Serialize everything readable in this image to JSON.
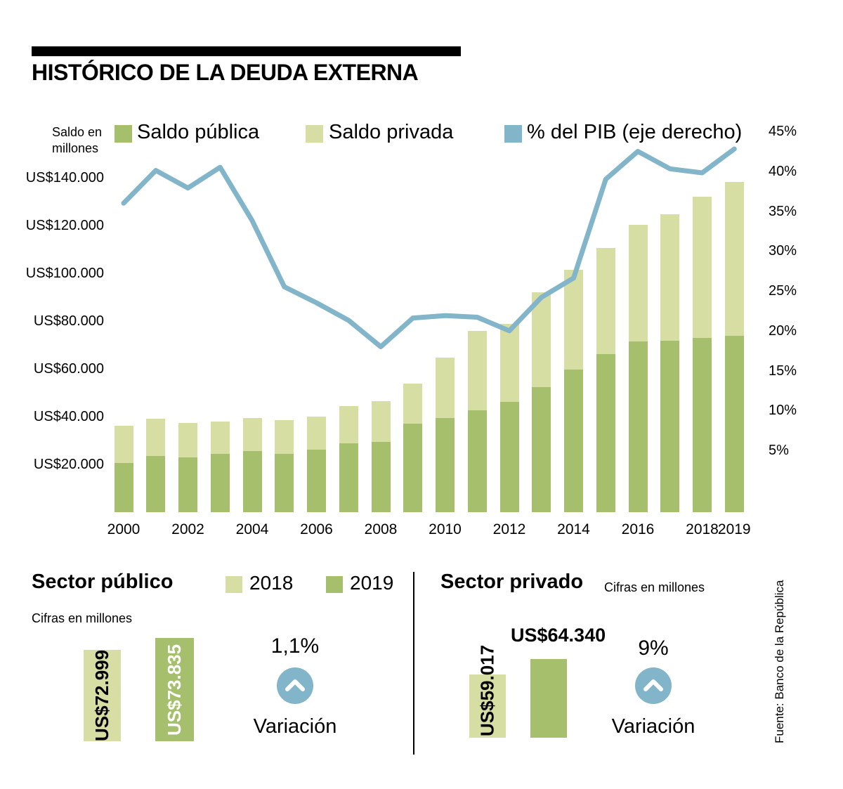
{
  "title": "HISTÓRICO DE LA DEUDA EXTERNA",
  "colors": {
    "publica": "#a5bf6c",
    "privada": "#d7dea4",
    "line": "#82b5c9"
  },
  "legend": {
    "axis_note": "Saldo en millones",
    "items": [
      {
        "label": "Saldo pública",
        "color": "#a5bf6c"
      },
      {
        "label": "Saldo privada",
        "color": "#d7dea4"
      },
      {
        "label": "% del PIB (eje derecho)",
        "color": "#82b5c9"
      }
    ]
  },
  "chart_data": {
    "type": "bar+line",
    "title": "HISTÓRICO DE LA DEUDA EXTERNA",
    "ylabel_left": "Saldo en millones",
    "ylabel_right": "% del PIB",
    "x": [
      2000,
      2001,
      2002,
      2003,
      2004,
      2005,
      2006,
      2007,
      2008,
      2009,
      2010,
      2011,
      2012,
      2013,
      2014,
      2015,
      2016,
      2017,
      2018,
      2019
    ],
    "series": [
      {
        "name": "Saldo pública",
        "type": "bar",
        "stack": true,
        "values": [
          20610,
          23468,
          22800,
          24525,
          25570,
          24300,
          26275,
          28819,
          29445,
          37129,
          39546,
          42769,
          46070,
          52207,
          59767,
          66194,
          71323,
          71867,
          72999,
          73835
        ]
      },
      {
        "name": "Saldo privada",
        "type": "bar",
        "stack": true,
        "values": [
          15520,
          15628,
          14540,
          13540,
          13927,
          14207,
          13828,
          15734,
          16924,
          16590,
          25177,
          33134,
          32714,
          39866,
          41637,
          44308,
          48830,
          52769,
          59017,
          64340
        ]
      },
      {
        "name": "% del PIB (eje derecho)",
        "type": "line",
        "axis": "right",
        "values": [
          36.0,
          40.1,
          37.9,
          40.5,
          33.8,
          25.5,
          23.5,
          21.3,
          18.0,
          21.6,
          21.9,
          21.7,
          20.0,
          24.2,
          26.6,
          39.0,
          42.5,
          40.3,
          39.8,
          42.8
        ]
      }
    ],
    "left_axis": {
      "tick_labels": [
        "US$140.000",
        "US$120.000",
        "US$100.000",
        "US$80.000",
        "US$60.000",
        "US$40.000",
        "US$20.000"
      ],
      "tick_values": [
        140000,
        120000,
        100000,
        80000,
        60000,
        40000,
        20000
      ],
      "range": [
        0,
        150000
      ]
    },
    "right_axis": {
      "tick_labels": [
        "45%",
        "40%",
        "35%",
        "30%",
        "25%",
        "20%",
        "15%",
        "10%",
        "5%"
      ],
      "tick_values": [
        45,
        40,
        35,
        30,
        25,
        20,
        15,
        10,
        5
      ],
      "range": [
        0,
        47
      ]
    },
    "x_tick_labels": [
      "2000",
      "2002",
      "2004",
      "2006",
      "2008",
      "2010",
      "2012",
      "2014",
      "2016",
      "2018",
      "2019"
    ],
    "grid": false,
    "legend_position": "top"
  },
  "panels": {
    "publico": {
      "heading": "Sector público",
      "note": "Cifras en millones",
      "legend": [
        {
          "label": "2018",
          "color": "#d7dea4"
        },
        {
          "label": "2019",
          "color": "#a5bf6c"
        }
      ],
      "bars": [
        {
          "year": "2018",
          "label": "US$72.999",
          "value": 72999
        },
        {
          "year": "2019",
          "label": "US$73.835",
          "value": 73835
        }
      ],
      "variation_pct": "1,1%",
      "variation_label": "Variación"
    },
    "privado": {
      "heading": "Sector privado",
      "note": "Cifras en millones",
      "bars": [
        {
          "year": "2018",
          "label": "US$59.017",
          "value": 59017
        },
        {
          "year": "2019",
          "label": "US$64.340",
          "value": 64340
        }
      ],
      "variation_pct": "9%",
      "variation_label": "Variación"
    }
  },
  "source": "Fuente: Banco de la República"
}
